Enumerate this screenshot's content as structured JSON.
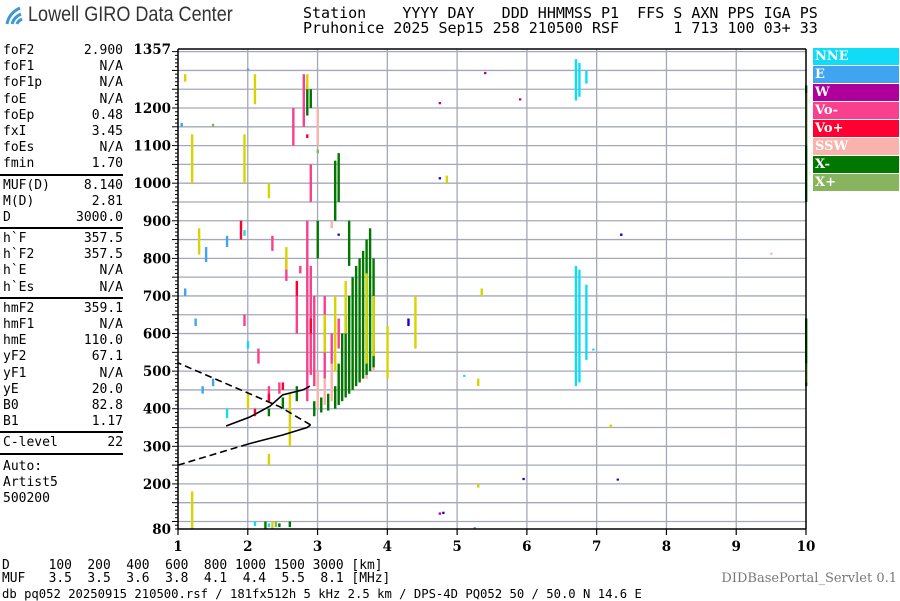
{
  "logo": {
    "text": "Lowell GIRO Data Center",
    "icon": "signal-arcs-icon",
    "color": "#3a9bd0"
  },
  "header": {
    "line1": "Station    YYYY DAY   DDD HHMMSS P1  FFS S AXN PPS IGA PS",
    "line2": "Pruhonice 2025 Sep15 258 210500 RSF      1 713 100 03+ 33"
  },
  "params": {
    "group1": [
      {
        "label": "foF2",
        "value": "2.900"
      },
      {
        "label": "foF1",
        "value": "N/A"
      },
      {
        "label": "foF1p",
        "value": "N/A"
      },
      {
        "label": "foE",
        "value": "N/A"
      },
      {
        "label": "foEp",
        "value": "0.48"
      },
      {
        "label": "fxI",
        "value": "3.45"
      },
      {
        "label": "foEs",
        "value": "N/A"
      },
      {
        "label": "fmin",
        "value": "1.70"
      }
    ],
    "group2": [
      {
        "label": "MUF(D)",
        "value": "8.140"
      },
      {
        "label": "M(D)",
        "value": "2.81"
      },
      {
        "label": "D",
        "value": "3000.0"
      }
    ],
    "group3": [
      {
        "label": "h`F",
        "value": "357.5"
      },
      {
        "label": "h`F2",
        "value": "357.5"
      },
      {
        "label": "h`E",
        "value": "N/A"
      },
      {
        "label": "h`Es",
        "value": "N/A"
      }
    ],
    "group4": [
      {
        "label": "hmF2",
        "value": "359.1"
      },
      {
        "label": "hmF1",
        "value": "N/A"
      },
      {
        "label": "hmE",
        "value": "110.0"
      },
      {
        "label": "yF2",
        "value": "67.1"
      },
      {
        "label": "yF1",
        "value": "N/A"
      },
      {
        "label": "yE",
        "value": "20.0"
      },
      {
        "label": "B0",
        "value": "82.8"
      },
      {
        "label": "B1",
        "value": "1.17"
      }
    ],
    "group5": [
      {
        "label": "C-level",
        "value": "22"
      }
    ],
    "auto": [
      "Auto:",
      "Artist5",
      "500200"
    ]
  },
  "bottom": {
    "d_row": "D     100  200  400  600  800 1000 1500 3000 [km]",
    "muf_row": "MUF   3.5  3.5  3.6  3.8  4.1  4.4  5.5  8.1 [MHz]",
    "file_row": "db pq052 20250915 210500.rsf / 181fx512h 5 kHz 2.5 km / DPS-4D PQ052 50 / 50.0 N 14.6 E",
    "servlet": "DIDBasePortal_Servlet 0.1"
  },
  "legend": [
    {
      "label": "NNE",
      "color": "#10dcf8"
    },
    {
      "label": "E",
      "color": "#40a4f0"
    },
    {
      "label": "W",
      "color": "#b0009c"
    },
    {
      "label": "Vo-",
      "color": "#f8408c"
    },
    {
      "label": "Vo+",
      "color": "#ff0030"
    },
    {
      "label": "SSW",
      "color": "#f8b4ac"
    },
    {
      "label": "X-",
      "color": "#007800"
    },
    {
      "label": "X+",
      "color": "#88b460"
    }
  ],
  "chart_data": {
    "type": "scatter",
    "xlabel": "",
    "ylabel": "",
    "xlim": [
      1,
      10
    ],
    "ylim": [
      80,
      1357
    ],
    "x_ticks": [
      "1",
      "2",
      "3",
      "4",
      "5",
      "6",
      "7",
      "8",
      "9",
      "10"
    ],
    "y_ticks": [
      "80",
      "200",
      "300",
      "400",
      "500",
      "600",
      "700",
      "800",
      "900",
      "1000",
      "1100",
      "1200",
      "1357"
    ],
    "grid": true,
    "legend_placement": "right",
    "note_streaks": "each entry is [frequency MHz, height low km, height high km]",
    "series": [
      {
        "name": "NNE",
        "color": "#10dcf8",
        "streaks": [
          [
            6.7,
            1220,
            1330
          ],
          [
            6.75,
            1230,
            1320
          ],
          [
            6.85,
            1265,
            1300
          ],
          [
            6.7,
            460,
            780
          ],
          [
            6.75,
            470,
            770
          ],
          [
            6.85,
            530,
            730
          ],
          [
            1.7,
            375,
            400
          ],
          [
            2.0,
            560,
            580
          ],
          [
            1.95,
            860,
            875
          ],
          [
            2.1,
            88,
            100
          ],
          [
            2.3,
            85,
            95
          ],
          [
            5.1,
            485,
            490
          ],
          [
            6.95,
            555,
            560
          ]
        ]
      },
      {
        "name": "E",
        "color": "#40a4f0",
        "streaks": [
          [
            1.1,
            700,
            720
          ],
          [
            1.25,
            620,
            640
          ],
          [
            1.4,
            790,
            830
          ],
          [
            1.5,
            460,
            480
          ],
          [
            1.7,
            830,
            860
          ],
          [
            2.0,
            1300,
            1305
          ],
          [
            1.35,
            440,
            460
          ],
          [
            5.25,
            80,
            85
          ],
          [
            1.05,
            1150,
            1160
          ]
        ]
      },
      {
        "name": "W",
        "color": "#b0009c",
        "streaks": [
          [
            5.4,
            1290,
            1296
          ],
          [
            5.9,
            1220,
            1226
          ],
          [
            4.75,
            1210,
            1216
          ],
          [
            4.75,
            118,
            124
          ],
          [
            10,
            490,
            496
          ],
          [
            7.35,
            860,
            866
          ]
        ]
      },
      {
        "name": "Vo-",
        "color": "#f8408c",
        "streaks": [
          [
            2.9,
            490,
            780
          ],
          [
            2.95,
            460,
            700
          ],
          [
            2.85,
            420,
            900
          ],
          [
            2.8,
            1150,
            1290
          ],
          [
            2.9,
            950,
            1050
          ],
          [
            2.35,
            820,
            860
          ],
          [
            2.55,
            740,
            800
          ],
          [
            2.7,
            600,
            700
          ],
          [
            3.1,
            480,
            700
          ],
          [
            3.2,
            500,
            600
          ],
          [
            2.65,
            1100,
            1200
          ],
          [
            2.3,
            420,
            460
          ],
          [
            2.45,
            440,
            470
          ],
          [
            1.95,
            620,
            650
          ],
          [
            2.15,
            520,
            560
          ],
          [
            3.3,
            560,
            640
          ],
          [
            2.75,
            760,
            780
          ]
        ]
      },
      {
        "name": "Vo+",
        "color": "#ff0030",
        "streaks": [
          [
            2.9,
            600,
            640
          ],
          [
            2.7,
            700,
            740
          ],
          [
            2.3,
            420,
            440
          ],
          [
            2.1,
            380,
            400
          ],
          [
            2.5,
            450,
            470
          ],
          [
            1.9,
            850,
            900
          ],
          [
            2.85,
            1120,
            1130
          ]
        ]
      },
      {
        "name": "SSW",
        "color": "#f8b4ac",
        "streaks": [
          [
            3.0,
            400,
            500
          ],
          [
            3.1,
            410,
            480
          ],
          [
            3.2,
            420,
            520
          ],
          [
            3.4,
            440,
            560
          ],
          [
            3.5,
            460,
            540
          ],
          [
            3.6,
            470,
            620
          ],
          [
            3.7,
            480,
            640
          ],
          [
            3.8,
            500,
            560
          ],
          [
            3.0,
            1100,
            1200
          ],
          [
            3.2,
            880,
            900
          ],
          [
            3.3,
            430,
            470
          ],
          [
            9.5,
            810,
            815
          ]
        ]
      },
      {
        "name": "X-",
        "color": "#007800",
        "streaks": [
          [
            2.95,
            380,
            420
          ],
          [
            3.05,
            390,
            430
          ],
          [
            3.15,
            395,
            440
          ],
          [
            3.25,
            400,
            460
          ],
          [
            3.3,
            410,
            520
          ],
          [
            3.35,
            420,
            600
          ],
          [
            3.4,
            430,
            650
          ],
          [
            3.45,
            440,
            700
          ],
          [
            3.5,
            450,
            750
          ],
          [
            3.55,
            460,
            780
          ],
          [
            3.6,
            470,
            800
          ],
          [
            3.65,
            480,
            820
          ],
          [
            3.7,
            490,
            850
          ],
          [
            3.75,
            500,
            880
          ],
          [
            3.8,
            510,
            800
          ],
          [
            3.25,
            900,
            1060
          ],
          [
            3.3,
            950,
            1080
          ],
          [
            3.0,
            800,
            900
          ],
          [
            3.45,
            780,
            900
          ],
          [
            2.85,
            1180,
            1260
          ],
          [
            2.9,
            1200,
            1250
          ],
          [
            2.25,
            80,
            100
          ],
          [
            2.45,
            85,
            95
          ],
          [
            2.6,
            85,
            100
          ],
          [
            10,
            460,
            640
          ],
          [
            10,
            950,
            1260
          ],
          [
            2.3,
            380,
            400
          ],
          [
            2.5,
            400,
            430
          ],
          [
            2.7,
            420,
            460
          ]
        ]
      },
      {
        "name": "X+",
        "color": "#88b460",
        "streaks": [
          [
            10,
            1100,
            1240
          ],
          [
            10,
            470,
            520
          ],
          [
            1.5,
            1150,
            1158
          ],
          [
            3.0,
            1080,
            1090
          ],
          [
            2.4,
            85,
            100
          ]
        ]
      },
      {
        "color": "#d8d400",
        "streaks": [
          [
            1.2,
            1000,
            1130
          ],
          [
            1.3,
            810,
            880
          ],
          [
            1.95,
            1000,
            1130
          ],
          [
            2.1,
            1210,
            1290
          ],
          [
            2.3,
            960,
            1000
          ],
          [
            2.55,
            770,
            830
          ],
          [
            2.6,
            300,
            440
          ],
          [
            2.85,
            1250,
            1290
          ],
          [
            3.1,
            550,
            650
          ],
          [
            3.25,
            500,
            700
          ],
          [
            3.4,
            600,
            740
          ],
          [
            3.7,
            520,
            760
          ],
          [
            3.8,
            540,
            700
          ],
          [
            4.0,
            480,
            620
          ],
          [
            4.4,
            560,
            700
          ],
          [
            1.2,
            80,
            180
          ],
          [
            2.3,
            250,
            280
          ],
          [
            2.35,
            80,
            100
          ],
          [
            4.85,
            1000,
            1020
          ],
          [
            5.3,
            460,
            480
          ],
          [
            5.3,
            190,
            200
          ],
          [
            5.35,
            700,
            720
          ],
          [
            7.2,
            350,
            358
          ],
          [
            1.1,
            1270,
            1290
          ],
          [
            2.0,
            400,
            440
          ]
        ]
      },
      {
        "color": "#2000d0",
        "streaks": [
          [
            7.35,
            860,
            866
          ],
          [
            4.8,
            120,
            126
          ],
          [
            5.95,
            210,
            216
          ],
          [
            7.3,
            210,
            214
          ],
          [
            3.3,
            860,
            866
          ],
          [
            4.3,
            620,
            640
          ],
          [
            4.75,
            1010,
            1016
          ]
        ]
      }
    ],
    "curves": [
      {
        "style": "dashed",
        "points": [
          [
            1.0,
            250
          ],
          [
            2.0,
            306
          ]
        ]
      },
      {
        "style": "solid",
        "points": [
          [
            2.0,
            306
          ],
          [
            2.5,
            330
          ],
          [
            2.85,
            350
          ],
          [
            2.9,
            357
          ]
        ]
      },
      {
        "style": "dashed",
        "points": [
          [
            2.9,
            357
          ],
          [
            2.46,
            405
          ],
          [
            1.0,
            522
          ]
        ]
      },
      {
        "style": "solid",
        "points": [
          [
            1.69,
            354
          ],
          [
            2.03,
            378
          ],
          [
            2.32,
            407
          ],
          [
            2.5,
            437
          ],
          [
            2.79,
            450
          ],
          [
            2.89,
            460
          ]
        ]
      }
    ]
  }
}
